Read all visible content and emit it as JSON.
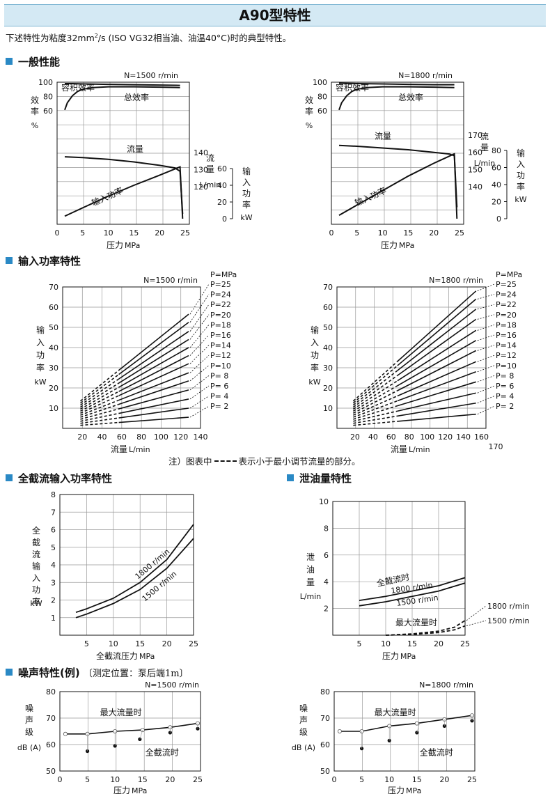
{
  "page": {
    "title": "A90型特性",
    "subtitle_pre": "下述特性为粘度32mm",
    "subtitle_sup": "2",
    "subtitle_post": "/s (ISO VG32相当油、油温40°C)时的典型特性。",
    "note_text": "注）图表中",
    "note_text2": "表示小于最小调节流量的部分。"
  },
  "sections": {
    "general": "一般性能",
    "input_power": "输入功率特性",
    "full_cutoff": "全截流输入功率特性",
    "leakage": "泄油量特性",
    "noise": "噪声特性(例)",
    "noise_note": "〔测定位置：泵后端1m〕"
  },
  "chart_data": [
    {
      "id": "general-1500",
      "type": "line",
      "title": "N=1500 r/min",
      "xlabel": "压力 MPa",
      "xticks": [
        0,
        5,
        10,
        15,
        20,
        25
      ],
      "xlim": [
        0,
        25.5
      ],
      "efficiency_axis": {
        "label": "效率 %",
        "ticks": [
          60,
          80,
          100
        ]
      },
      "flow_axis": {
        "label": "流量 L/min",
        "ticks": [
          120,
          130,
          140
        ]
      },
      "power_axis": {
        "label": "输入功率 kW",
        "ticks": [
          0,
          20,
          40,
          60
        ]
      },
      "curve_labels": {
        "volumetric": "容积效率",
        "total": "总效率",
        "flow": "流量",
        "power": "输入功率"
      },
      "series": [
        {
          "name": "容积效率",
          "axis": "efficiency",
          "x": [
            1.5,
            3,
            5,
            10,
            15,
            20,
            24
          ],
          "y": [
            98,
            98,
            97.5,
            97,
            96.5,
            96,
            95.5
          ]
        },
        {
          "name": "总效率",
          "axis": "efficiency",
          "x": [
            1.5,
            2,
            3,
            4,
            5,
            7,
            10,
            15,
            20,
            24
          ],
          "y": [
            61,
            71,
            81,
            87,
            90,
            92.5,
            93.5,
            93.5,
            93,
            92.5
          ]
        },
        {
          "name": "流量",
          "axis": "flow",
          "x": [
            1.5,
            5,
            10,
            15,
            20,
            23,
            24,
            24.5
          ],
          "y": [
            137.5,
            137,
            136,
            134.5,
            132.5,
            131,
            129,
            104
          ]
        },
        {
          "name": "输入功率",
          "axis": "power",
          "x": [
            1.5,
            5,
            10,
            15,
            20,
            24,
            24.5
          ],
          "y": [
            3,
            13,
            27,
            40,
            52,
            62,
            0
          ]
        }
      ]
    },
    {
      "id": "general-1800",
      "type": "line",
      "title": "N=1800 r/min",
      "xlabel": "压力 MPa",
      "xticks": [
        0,
        5,
        10,
        15,
        20,
        25
      ],
      "xlim": [
        0,
        25.5
      ],
      "efficiency_axis": {
        "label": "效率 %",
        "ticks": [
          60,
          80,
          100
        ]
      },
      "flow_axis": {
        "label": "流量 L/min",
        "ticks": [
          140,
          150,
          160,
          170
        ]
      },
      "power_axis": {
        "label": "输入功率 kW",
        "ticks": [
          0,
          20,
          40,
          60,
          80
        ]
      },
      "curve_labels": {
        "volumetric": "容积效率",
        "total": "总效率",
        "flow": "流量",
        "power": "输入功率"
      },
      "series": [
        {
          "name": "容积效率",
          "axis": "efficiency",
          "x": [
            1.5,
            5,
            10,
            15,
            20,
            24
          ],
          "y": [
            98.5,
            98,
            97.5,
            97,
            96.5,
            96.5
          ]
        },
        {
          "name": "总效率",
          "axis": "efficiency",
          "x": [
            1.5,
            2,
            3,
            4,
            5,
            7,
            10,
            15,
            20,
            24
          ],
          "y": [
            61,
            71,
            81,
            87,
            90,
            92.5,
            93.5,
            93.5,
            93,
            92.5
          ]
        },
        {
          "name": "流量",
          "axis": "flow",
          "x": [
            1.5,
            5,
            10,
            15,
            20,
            23,
            24,
            24.5
          ],
          "y": [
            164,
            163.5,
            162.5,
            161.5,
            160,
            159,
            158,
            128
          ]
        },
        {
          "name": "输入功率",
          "axis": "power",
          "x": [
            1.5,
            5,
            10,
            15,
            20,
            24,
            24.5
          ],
          "y": [
            4,
            16,
            33,
            50,
            65,
            76,
            0
          ]
        }
      ]
    },
    {
      "id": "power-1500",
      "type": "line",
      "title": "N=1500 r/min",
      "xlabel": "流量 L/min",
      "ylabel": "输入功率 kW",
      "xticks": [
        20,
        40,
        60,
        80,
        100,
        120,
        140
      ],
      "yticks": [
        10,
        20,
        30,
        40,
        50,
        60,
        70
      ],
      "xlim": [
        0,
        140
      ],
      "ylim": [
        0,
        70
      ],
      "x_min_adjust": 57,
      "x_range": [
        18,
        128
      ],
      "legend_header": "P=MPa",
      "series": [
        {
          "name": "P=25",
          "p": 25,
          "y_start": 13.5,
          "y_end": 56.5
        },
        {
          "name": "P=24",
          "p": 24,
          "y_start": 12.5,
          "y_end": 52.5
        },
        {
          "name": "P=22",
          "p": 22,
          "y_start": 11.5,
          "y_end": 48
        },
        {
          "name": "P=20",
          "p": 20,
          "y_start": 10.5,
          "y_end": 44
        },
        {
          "name": "P=18",
          "p": 18,
          "y_start": 9.5,
          "y_end": 40
        },
        {
          "name": "P=16",
          "p": 16,
          "y_start": 8.5,
          "y_end": 36
        },
        {
          "name": "P=14",
          "p": 14,
          "y_start": 7.5,
          "y_end": 32
        },
        {
          "name": "P=12",
          "p": 12,
          "y_start": 6.5,
          "y_end": 27.5
        },
        {
          "name": "P=10",
          "p": 10,
          "y_start": 5.5,
          "y_end": 23.5
        },
        {
          "name": "P=  8",
          "p": 8,
          "y_start": 4.5,
          "y_end": 19
        },
        {
          "name": "P=  6",
          "p": 6,
          "y_start": 3.5,
          "y_end": 14.5
        },
        {
          "name": "P=  4",
          "p": 4,
          "y_start": 2.5,
          "y_end": 10
        },
        {
          "name": "P=  2",
          "p": 2,
          "y_start": 1.5,
          "y_end": 5.5
        }
      ]
    },
    {
      "id": "power-1800",
      "type": "line",
      "title": "N=1800 r/min",
      "xlabel": "流量 L/min",
      "ylabel": "输入功率 kW",
      "xticks": [
        20,
        40,
        60,
        80,
        100,
        120,
        140,
        160
      ],
      "extra_xtick": "170",
      "yticks": [
        10,
        20,
        30,
        40,
        50,
        60,
        70
      ],
      "xlim": [
        0,
        165
      ],
      "ylim": [
        0,
        70
      ],
      "x_min_adjust": 67,
      "x_range": [
        18,
        154
      ],
      "legend_header": "P=MPa",
      "series": [
        {
          "name": "P=25",
          "p": 25,
          "y_start": 13.5,
          "y_end": 68
        },
        {
          "name": "P=24",
          "p": 24,
          "y_start": 12.5,
          "y_end": 64
        },
        {
          "name": "P=22",
          "p": 22,
          "y_start": 11.5,
          "y_end": 59
        },
        {
          "name": "P=20",
          "p": 20,
          "y_start": 10.5,
          "y_end": 54
        },
        {
          "name": "P=18",
          "p": 18,
          "y_start": 9.5,
          "y_end": 48.5
        },
        {
          "name": "P=16",
          "p": 16,
          "y_start": 8.5,
          "y_end": 43.5
        },
        {
          "name": "P=14",
          "p": 14,
          "y_start": 7.5,
          "y_end": 38.5
        },
        {
          "name": "P=12",
          "p": 12,
          "y_start": 6.5,
          "y_end": 33
        },
        {
          "name": "P=10",
          "p": 10,
          "y_start": 5.5,
          "y_end": 28
        },
        {
          "name": "P=  8",
          "p": 8,
          "y_start": 4.5,
          "y_end": 23
        },
        {
          "name": "P=  6",
          "p": 6,
          "y_start": 3.5,
          "y_end": 17.5
        },
        {
          "name": "P=  4",
          "p": 4,
          "y_start": 2.5,
          "y_end": 12.5
        },
        {
          "name": "P=  2",
          "p": 2,
          "y_start": 1.5,
          "y_end": 7
        }
      ]
    },
    {
      "id": "full-cutoff",
      "type": "line",
      "xlabel": "全截流压力 MPa",
      "ylabel": "全截流输入功率 kW",
      "xticks": [
        5,
        10,
        15,
        20,
        25
      ],
      "yticks": [
        1,
        2,
        3,
        4,
        5,
        6,
        7,
        8
      ],
      "xlim": [
        0,
        25
      ],
      "ylim": [
        0,
        8
      ],
      "series": [
        {
          "name": "1800 r/min",
          "x": [
            3,
            5,
            10,
            15,
            20,
            25
          ],
          "y": [
            1.3,
            1.5,
            2.1,
            3.0,
            4.3,
            6.3
          ]
        },
        {
          "name": "1500 r/min",
          "x": [
            3,
            5,
            10,
            15,
            20,
            25
          ],
          "y": [
            1.0,
            1.2,
            1.8,
            2.6,
            3.8,
            5.5
          ]
        }
      ]
    },
    {
      "id": "leakage",
      "type": "line",
      "xlabel": "压力 MPa",
      "ylabel": "泄油量 L/min",
      "xticks": [
        5,
        10,
        15,
        20,
        25
      ],
      "yticks": [
        2,
        4,
        6,
        8,
        10
      ],
      "xlim": [
        0,
        25
      ],
      "ylim": [
        0,
        10
      ],
      "label_full": "全截流时",
      "label_max": "最大流量时",
      "series": [
        {
          "name": "1800 r/min",
          "mode": "全截流时",
          "x": [
            5,
            10,
            15,
            20,
            25
          ],
          "y": [
            2.6,
            2.9,
            3.3,
            3.7,
            4.3
          ]
        },
        {
          "name": "1500 r/min",
          "mode": "全截流时",
          "x": [
            5,
            10,
            15,
            20,
            25
          ],
          "y": [
            2.2,
            2.5,
            2.9,
            3.3,
            3.9
          ]
        },
        {
          "name": "1800 r/min",
          "mode": "最大流量时",
          "x": [
            10,
            15,
            20,
            23,
            25
          ],
          "y": [
            0,
            0.1,
            0.3,
            0.6,
            1.1
          ]
        },
        {
          "name": "1500 r/min",
          "mode": "最大流量时",
          "x": [
            10,
            15,
            20,
            23,
            25
          ],
          "y": [
            0,
            0.05,
            0.2,
            0.4,
            0.7
          ]
        }
      ],
      "legend": [
        "1800 r/min",
        "1500 r/min"
      ]
    },
    {
      "id": "noise-1500",
      "type": "scatter",
      "title": "N=1500 r/min",
      "xlabel": "压力 MPa",
      "ylabel": "噪声级 dB (A)",
      "xticks": [
        0,
        5,
        10,
        15,
        20,
        25
      ],
      "yticks": [
        50,
        60,
        70,
        80
      ],
      "xlim": [
        0,
        25.5
      ],
      "ylim": [
        50,
        80
      ],
      "label_max": "最大流量时",
      "label_full": "全截流时",
      "series": [
        {
          "name": "最大流量时",
          "x": [
            1,
            5,
            10,
            15,
            20,
            25
          ],
          "y": [
            64,
            64,
            65,
            65.5,
            66.5,
            68
          ]
        },
        {
          "name": "全截流时",
          "x": [
            5,
            10,
            14.5,
            20,
            25
          ],
          "y": [
            57.5,
            59.5,
            62,
            64.5,
            66
          ]
        }
      ]
    },
    {
      "id": "noise-1800",
      "type": "scatter",
      "title": "N=1800 r/min",
      "xlabel": "压力 MPa",
      "ylabel": "噪声级 dB (A)",
      "xticks": [
        0,
        5,
        10,
        15,
        20,
        25
      ],
      "yticks": [
        50,
        60,
        70,
        80
      ],
      "xlim": [
        0,
        25.5
      ],
      "ylim": [
        50,
        80
      ],
      "label_max": "最大流量时",
      "label_full": "全截流时",
      "series": [
        {
          "name": "最大流量时",
          "x": [
            1,
            5,
            10,
            15,
            20,
            25
          ],
          "y": [
            65,
            65,
            67,
            68,
            69.5,
            71
          ]
        },
        {
          "name": "全截流时",
          "x": [
            5,
            10,
            15,
            20,
            25
          ],
          "y": [
            58.5,
            61.5,
            64.5,
            67,
            69
          ]
        }
      ]
    }
  ]
}
